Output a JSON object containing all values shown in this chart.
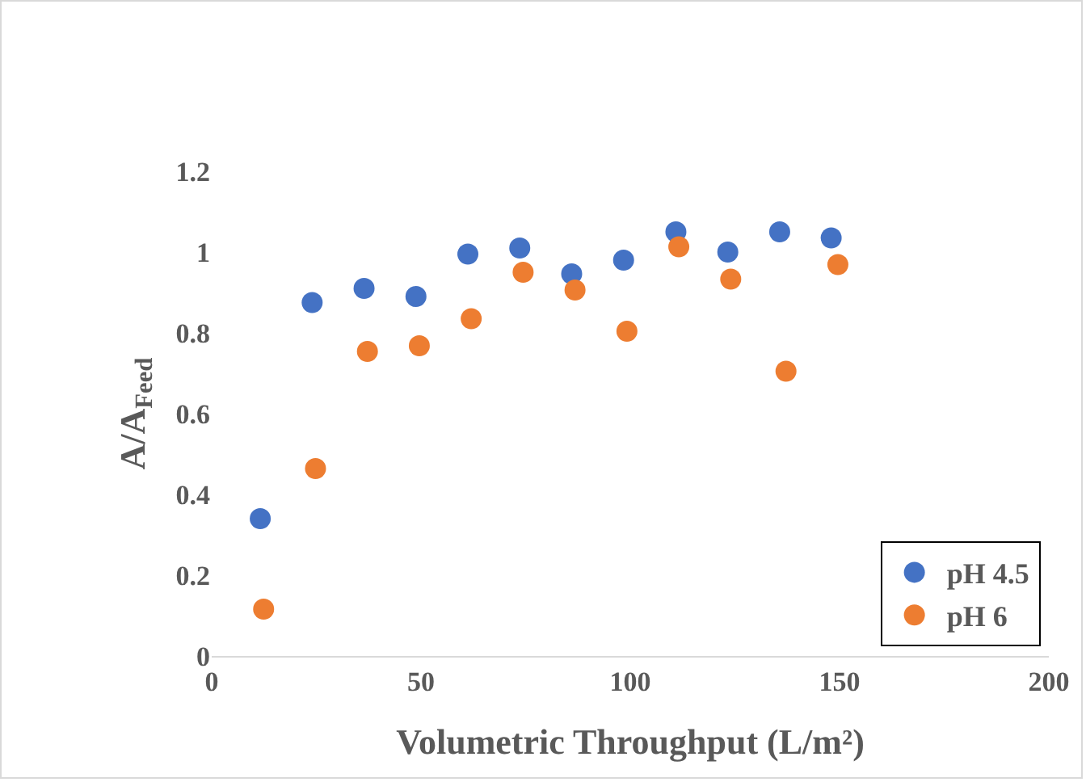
{
  "chart_data": {
    "type": "scatter",
    "xlabel": "Volumetric Throughput (L/m²)",
    "ylabel": "A/A$_{Feed}$",
    "xlim": [
      0,
      200
    ],
    "xticks": [
      0,
      50,
      100,
      150,
      200
    ],
    "ylim": [
      0,
      1.2
    ],
    "yticks": [
      0,
      0.2,
      0.4,
      0.6,
      0.8,
      1,
      1.2
    ],
    "grid": false,
    "legend": "bottom right",
    "marker": "circle",
    "series": [
      {
        "name": "pH 4.5",
        "color": "#4472c4",
        "x": [
          11.6,
          24,
          36.4,
          48.8,
          61.2,
          73.6,
          86,
          98.4,
          110.9,
          123.3,
          135.7,
          148
        ],
        "values": [
          0.34,
          0.875,
          0.91,
          0.89,
          0.995,
          1.01,
          0.946,
          0.98,
          1.05,
          1.0,
          1.05,
          1.035
        ]
      },
      {
        "name": "pH 6",
        "color": "#ed7d31",
        "x": [
          12.4,
          24.8,
          37.2,
          49.6,
          62,
          74.4,
          86.8,
          99.2,
          111.6,
          124,
          137.2,
          149.6
        ],
        "values": [
          0.116,
          0.464,
          0.754,
          0.768,
          0.835,
          0.95,
          0.906,
          0.804,
          1.013,
          0.933,
          0.705,
          0.969
        ]
      }
    ]
  }
}
